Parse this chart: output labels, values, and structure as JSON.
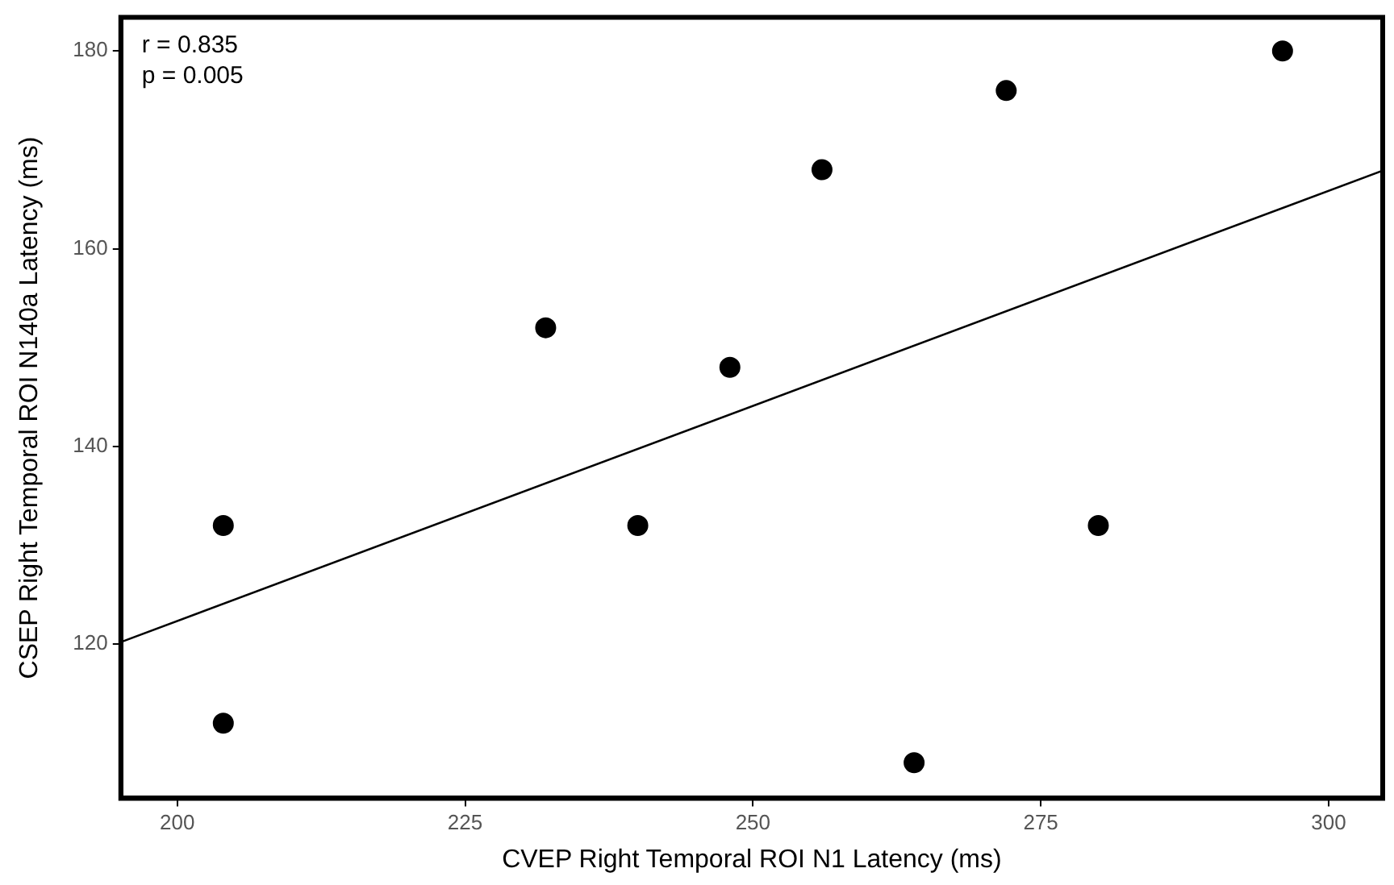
{
  "chart_data": {
    "type": "scatter",
    "xlabel": "CVEP Right Temporal ROI N1 Latency (ms)",
    "ylabel": "CSEP Right Temporal ROI N140a Latency (ms)",
    "annotations": [
      "r = 0.835",
      "p = 0.005"
    ],
    "series": [
      {
        "marker": "circle",
        "color": "#000000",
        "x": [
          204,
          204,
          232,
          240,
          248,
          256,
          264,
          272,
          280,
          296
        ],
        "values": [
          132,
          112,
          152,
          132,
          148,
          168,
          108,
          176,
          132,
          180
        ]
      },
      {
        "type": "line",
        "color": "#000000",
        "x": [
          195.1,
          304.7
        ],
        "values": [
          120.2,
          167.9
        ]
      }
    ],
    "xlim": [
      195.1,
      304.7
    ],
    "ylim": [
      104.4,
      183.4
    ],
    "xticks": [
      200,
      225,
      250,
      275,
      300
    ],
    "yticks": [
      120,
      140,
      160,
      180
    ],
    "grid": false,
    "legend": false
  }
}
